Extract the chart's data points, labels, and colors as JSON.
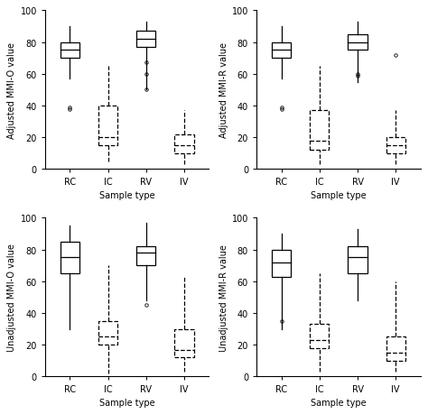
{
  "subplots": [
    {
      "ylabel": "Adjusted MMI-O value",
      "xlabel": "Sample type",
      "ylim": [
        0,
        100
      ],
      "yticks": [
        0,
        20,
        40,
        60,
        80,
        100
      ],
      "categories": [
        "RC",
        "IC",
        "RV",
        "IV"
      ],
      "dashed": [
        false,
        true,
        false,
        true
      ],
      "boxes": [
        {
          "q1": 70,
          "median": 75,
          "q3": 80,
          "whislo": 57,
          "whishi": 90,
          "fliers": [
            39,
            38
          ]
        },
        {
          "q1": 15,
          "median": 20,
          "q3": 40,
          "whislo": 5,
          "whishi": 65,
          "fliers": []
        },
        {
          "q1": 77,
          "median": 82,
          "q3": 87,
          "whislo": 50,
          "whishi": 93,
          "fliers": [
            50,
            60,
            67
          ]
        },
        {
          "q1": 10,
          "median": 15,
          "q3": 22,
          "whislo": 3,
          "whishi": 37,
          "fliers": []
        }
      ]
    },
    {
      "ylabel": "Adjusted MMI-R value",
      "xlabel": "Sample type",
      "ylim": [
        0,
        100
      ],
      "yticks": [
        0,
        20,
        40,
        60,
        80,
        100
      ],
      "categories": [
        "RC",
        "IC",
        "RV",
        "IV"
      ],
      "dashed": [
        false,
        true,
        false,
        true
      ],
      "boxes": [
        {
          "q1": 70,
          "median": 75,
          "q3": 80,
          "whislo": 57,
          "whishi": 90,
          "fliers": [
            39,
            38
          ]
        },
        {
          "q1": 12,
          "median": 18,
          "q3": 37,
          "whislo": 3,
          "whishi": 65,
          "fliers": []
        },
        {
          "q1": 75,
          "median": 80,
          "q3": 85,
          "whislo": 55,
          "whishi": 93,
          "fliers": [
            60,
            59
          ]
        },
        {
          "q1": 10,
          "median": 15,
          "q3": 20,
          "whislo": 3,
          "whishi": 37,
          "fliers": [
            72
          ]
        }
      ]
    },
    {
      "ylabel": "Unadjusted MMI-O value",
      "xlabel": "Sample type",
      "ylim": [
        0,
        100
      ],
      "yticks": [
        0,
        20,
        40,
        60,
        80,
        100
      ],
      "categories": [
        "RC",
        "IC",
        "RV",
        "IV"
      ],
      "dashed": [
        false,
        true,
        false,
        true
      ],
      "boxes": [
        {
          "q1": 65,
          "median": 75,
          "q3": 85,
          "whislo": 30,
          "whishi": 95,
          "fliers": []
        },
        {
          "q1": 20,
          "median": 25,
          "q3": 35,
          "whislo": 2,
          "whishi": 70,
          "fliers": []
        },
        {
          "q1": 70,
          "median": 78,
          "q3": 82,
          "whislo": 48,
          "whishi": 97,
          "fliers": [
            45
          ]
        },
        {
          "q1": 12,
          "median": 17,
          "q3": 30,
          "whislo": 3,
          "whishi": 63,
          "fliers": []
        }
      ]
    },
    {
      "ylabel": "Unadjusted MMI-R value",
      "xlabel": "Sample type",
      "ylim": [
        0,
        100
      ],
      "yticks": [
        0,
        20,
        40,
        60,
        80,
        100
      ],
      "categories": [
        "RC",
        "IC",
        "RV",
        "IV"
      ],
      "dashed": [
        false,
        true,
        false,
        true
      ],
      "boxes": [
        {
          "q1": 63,
          "median": 72,
          "q3": 80,
          "whislo": 30,
          "whishi": 90,
          "fliers": [
            35
          ]
        },
        {
          "q1": 18,
          "median": 23,
          "q3": 33,
          "whislo": 3,
          "whishi": 65,
          "fliers": []
        },
        {
          "q1": 65,
          "median": 75,
          "q3": 82,
          "whislo": 48,
          "whishi": 93,
          "fliers": []
        },
        {
          "q1": 10,
          "median": 15,
          "q3": 25,
          "whislo": 3,
          "whishi": 60,
          "fliers": []
        }
      ]
    }
  ],
  "figure_bg": "#ffffff",
  "solid_color": "#000000",
  "flier_marker": "o",
  "flier_size": 2.5,
  "box_width": 0.5,
  "lw": 0.9
}
